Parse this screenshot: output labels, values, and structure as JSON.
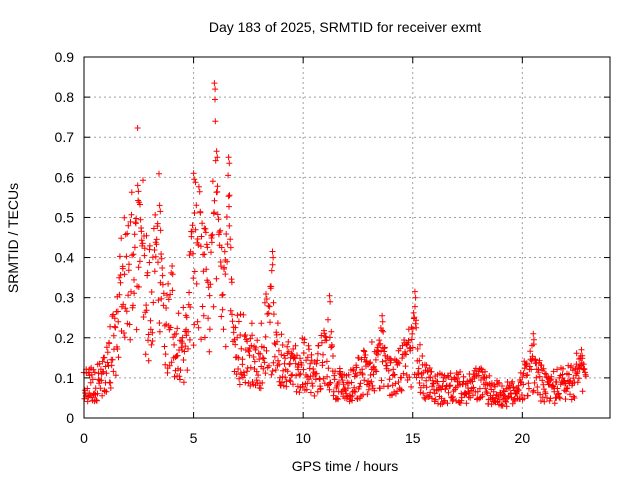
{
  "chart_data": {
    "type": "scatter",
    "title": "Day 183 of 2025, SRMTID for receiver exmt",
    "xlabel": "GPS time / hours",
    "ylabel": "SRMTID / TECUs",
    "xlim": [
      0,
      24
    ],
    "ylim": [
      0,
      0.9
    ],
    "x_ticks": [
      0,
      5,
      10,
      15,
      20
    ],
    "x_tick_labels": [
      "0",
      "5",
      "10",
      "15",
      "20"
    ],
    "y_ticks": [
      0,
      0.1,
      0.2,
      0.3,
      0.4,
      0.5,
      0.6,
      0.7,
      0.8,
      0.9
    ],
    "y_tick_labels": [
      "0",
      "0.1",
      "0.2",
      "0.3",
      "0.4",
      "0.5",
      "0.6",
      "0.7",
      "0.8",
      "0.9"
    ],
    "grid": true,
    "marker": "+",
    "color": "#ff0000",
    "series": [
      {
        "name": "SRMTID",
        "profile": [
          {
            "x": 0.0,
            "y": 0.08
          },
          {
            "x": 0.5,
            "y": 0.09
          },
          {
            "x": 1.0,
            "y": 0.12
          },
          {
            "x": 1.3,
            "y": 0.18
          },
          {
            "x": 1.6,
            "y": 0.25
          },
          {
            "x": 1.9,
            "y": 0.4
          },
          {
            "x": 2.2,
            "y": 0.38
          },
          {
            "x": 2.5,
            "y": 0.52
          },
          {
            "x": 2.8,
            "y": 0.33
          },
          {
            "x": 3.1,
            "y": 0.3
          },
          {
            "x": 3.4,
            "y": 0.45
          },
          {
            "x": 3.7,
            "y": 0.24
          },
          {
            "x": 4.0,
            "y": 0.26
          },
          {
            "x": 4.3,
            "y": 0.18
          },
          {
            "x": 4.6,
            "y": 0.2
          },
          {
            "x": 4.9,
            "y": 0.36
          },
          {
            "x": 5.2,
            "y": 0.42
          },
          {
            "x": 5.5,
            "y": 0.32
          },
          {
            "x": 5.8,
            "y": 0.3
          },
          {
            "x": 6.0,
            "y": 0.45
          },
          {
            "x": 6.3,
            "y": 0.35
          },
          {
            "x": 6.6,
            "y": 0.4
          },
          {
            "x": 6.8,
            "y": 0.17
          },
          {
            "x": 7.2,
            "y": 0.18
          },
          {
            "x": 7.6,
            "y": 0.16
          },
          {
            "x": 8.0,
            "y": 0.15
          },
          {
            "x": 8.5,
            "y": 0.25
          },
          {
            "x": 9.0,
            "y": 0.14
          },
          {
            "x": 9.5,
            "y": 0.12
          },
          {
            "x": 10.0,
            "y": 0.15
          },
          {
            "x": 10.5,
            "y": 0.1
          },
          {
            "x": 11.0,
            "y": 0.18
          },
          {
            "x": 11.5,
            "y": 0.09
          },
          {
            "x": 12.0,
            "y": 0.08
          },
          {
            "x": 12.5,
            "y": 0.1
          },
          {
            "x": 13.0,
            "y": 0.13
          },
          {
            "x": 13.5,
            "y": 0.15
          },
          {
            "x": 14.0,
            "y": 0.1
          },
          {
            "x": 14.5,
            "y": 0.12
          },
          {
            "x": 15.0,
            "y": 0.18
          },
          {
            "x": 15.5,
            "y": 0.1
          },
          {
            "x": 16.0,
            "y": 0.08
          },
          {
            "x": 16.5,
            "y": 0.07
          },
          {
            "x": 17.0,
            "y": 0.08
          },
          {
            "x": 17.5,
            "y": 0.07
          },
          {
            "x": 18.0,
            "y": 0.09
          },
          {
            "x": 18.5,
            "y": 0.07
          },
          {
            "x": 19.0,
            "y": 0.06
          },
          {
            "x": 19.5,
            "y": 0.06
          },
          {
            "x": 20.0,
            "y": 0.09
          },
          {
            "x": 20.5,
            "y": 0.12
          },
          {
            "x": 21.0,
            "y": 0.08
          },
          {
            "x": 21.5,
            "y": 0.08
          },
          {
            "x": 22.0,
            "y": 0.09
          },
          {
            "x": 22.5,
            "y": 0.11
          },
          {
            "x": 22.8,
            "y": 0.1
          }
        ],
        "spikes": [
          {
            "x": 2.45,
            "y": 0.58
          },
          {
            "x": 3.45,
            "y": 0.53
          },
          {
            "x": 5.0,
            "y": 0.61
          },
          {
            "x": 5.95,
            "y": 0.835
          },
          {
            "x": 6.05,
            "y": 0.665
          },
          {
            "x": 6.6,
            "y": 0.65
          },
          {
            "x": 8.6,
            "y": 0.415
          },
          {
            "x": 11.2,
            "y": 0.305
          },
          {
            "x": 13.6,
            "y": 0.255
          },
          {
            "x": 15.1,
            "y": 0.315
          },
          {
            "x": 20.5,
            "y": 0.21
          },
          {
            "x": 22.7,
            "y": 0.17
          }
        ],
        "x_range_hours": [
          0,
          22.9
        ],
        "sample_count": 1200
      }
    ]
  }
}
